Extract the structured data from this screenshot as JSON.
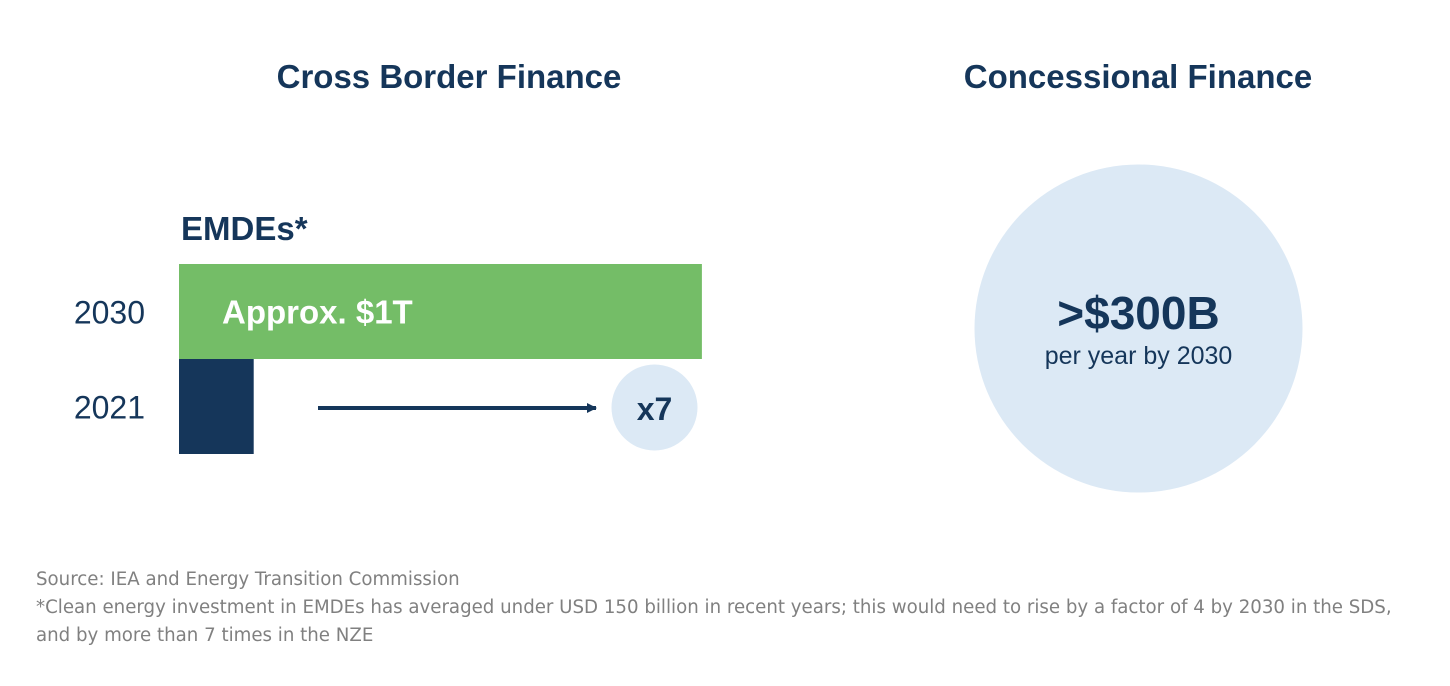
{
  "colors": {
    "title": "#15365a",
    "bar_2030": "#74bd67",
    "bar_2021": "#15365a",
    "bubble": "#dce9f5",
    "footnote": "#808080"
  },
  "left_panel": {
    "title": "Cross Border Finance"
  },
  "right_panel": {
    "title": "Concessional Finance",
    "value": ">$300B",
    "caption": "per year by 2030"
  },
  "chart_data": {
    "type": "bar",
    "orientation": "horizontal",
    "title": "EMDEs*",
    "categories": [
      "2030",
      "2021"
    ],
    "values": [
      7,
      1
    ],
    "units": "relative to 2021",
    "data_labels": [
      "Approx. $1T",
      ""
    ],
    "annotation": "x7",
    "legend": "none",
    "grid": false
  },
  "footnote": {
    "source": "Source: IEA and Energy Transition Commission",
    "note": "*Clean energy investment in EMDEs has averaged under USD 150 billion in recent years; this would need to rise by a factor of 4 by 2030 in the SDS, and by more than 7 times in the NZE"
  }
}
